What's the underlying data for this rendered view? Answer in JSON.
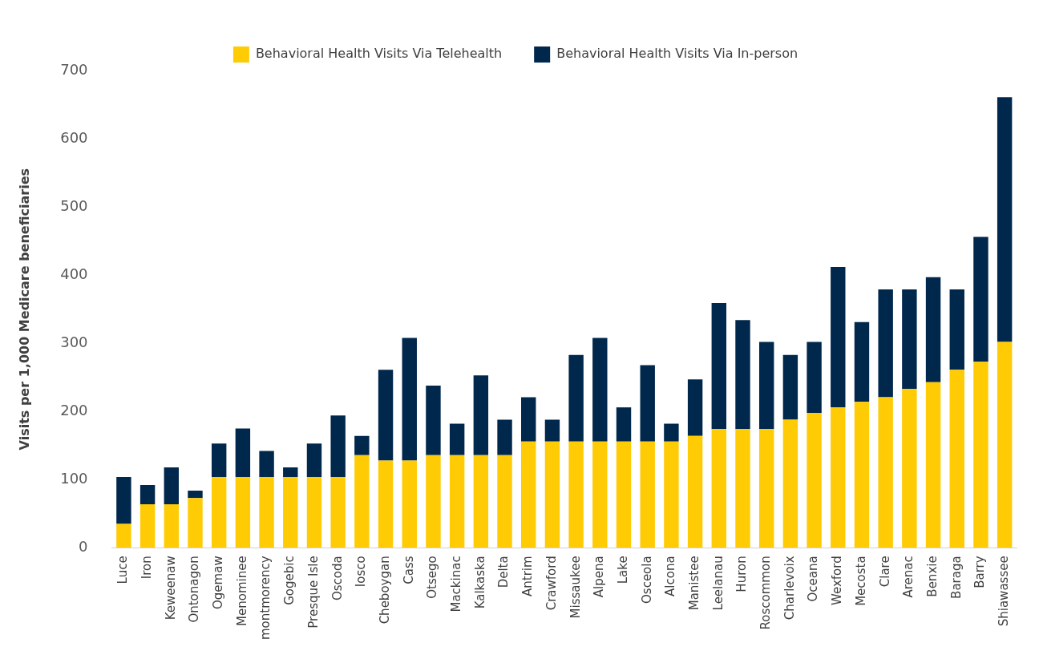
{
  "chart_data": {
    "type": "bar",
    "stacked": true,
    "ylabel": "Visits per 1,000 Medicare beneficiaries",
    "categories": [
      "Luce",
      "Iron",
      "Keweenaw",
      "Ontonagon",
      "Ogemaw",
      "Menominee",
      "montmorency",
      "Gogebic",
      "Presque Isle",
      "Oscoda",
      "Iosco",
      "Cheboygan",
      "Cass",
      "Otsego",
      "Mackinac",
      "Kalkaska",
      "Delta",
      "Antrim",
      "Crawford",
      "Missaukee",
      "Alpena",
      "Lake",
      "Osceola",
      "Alcona",
      "Manistee",
      "Leelanau",
      "Huron",
      "Roscommon",
      "Charlevoix",
      "Oceana",
      "Wexford",
      "Mecosta",
      "Clare",
      "Arenac",
      "Benxie",
      "Baraga",
      "Barry",
      "Shiawassee"
    ],
    "series": [
      {
        "name": "Behavioral Health Visits Via Telehealth",
        "color": "#ffcb05",
        "values": [
          35,
          64,
          64,
          73,
          104,
          104,
          104,
          104,
          104,
          104,
          136,
          128,
          128,
          136,
          136,
          136,
          136,
          156,
          156,
          156,
          156,
          156,
          156,
          156,
          164,
          174,
          174,
          174,
          188,
          198,
          206,
          214,
          221,
          233,
          243,
          261,
          273,
          302
        ]
      },
      {
        "name": "Behavioral Health Visits Via In-person",
        "color": "#00274c",
        "values": [
          69,
          28,
          54,
          11,
          49,
          71,
          38,
          14,
          49,
          90,
          28,
          133,
          180,
          102,
          46,
          117,
          52,
          65,
          32,
          127,
          152,
          50,
          112,
          26,
          83,
          185,
          160,
          128,
          95,
          104,
          206,
          117,
          158,
          146,
          154,
          118,
          183,
          359
        ]
      }
    ],
    "ylim": [
      0,
      700
    ],
    "yticks": [
      0,
      100,
      200,
      300,
      400,
      500,
      600,
      700
    ],
    "grid": false,
    "legend": "top"
  }
}
